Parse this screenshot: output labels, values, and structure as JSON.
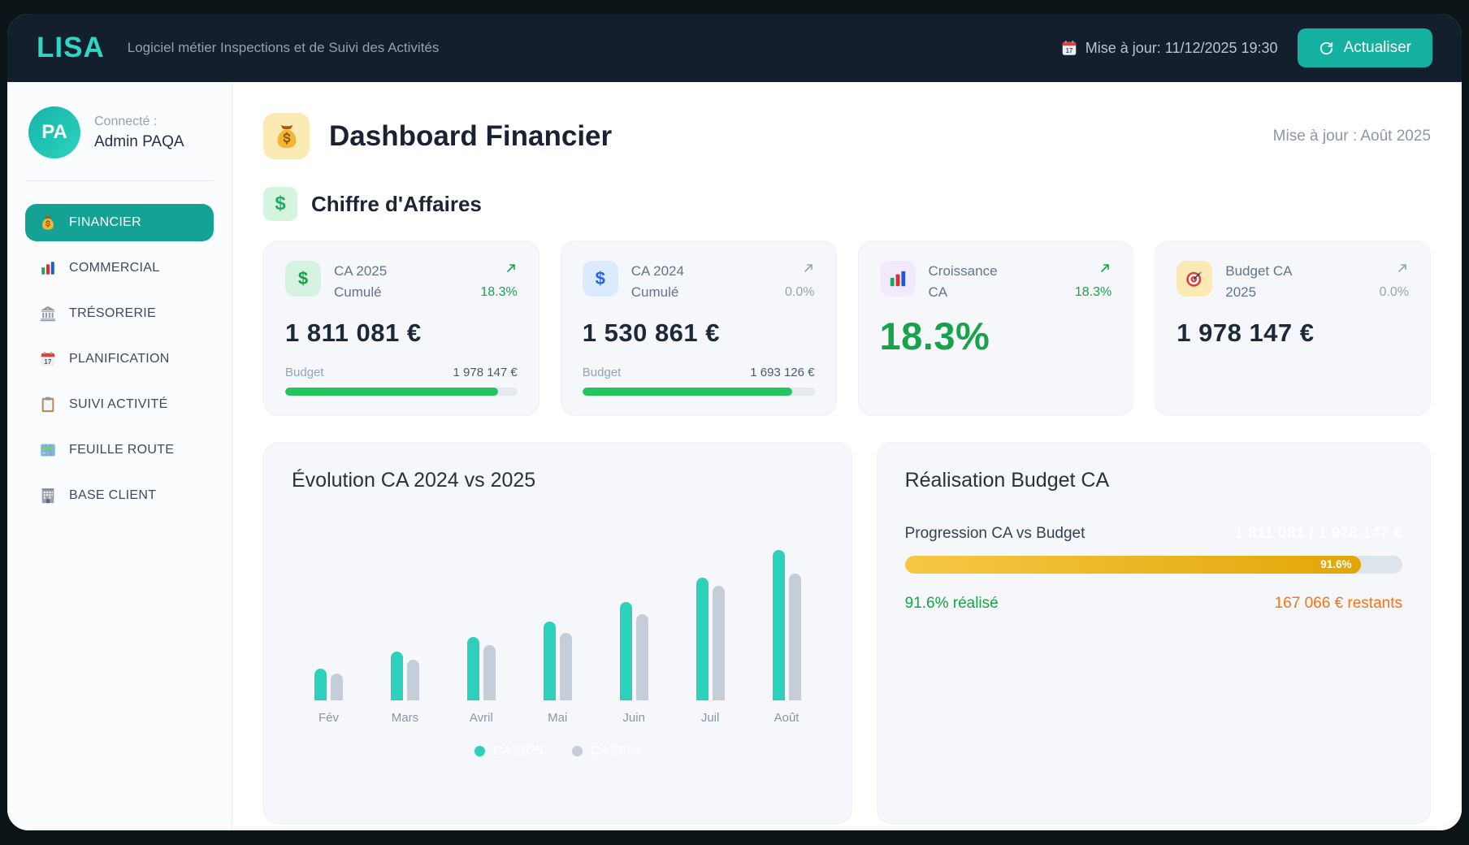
{
  "header": {
    "logo": "LISA",
    "tagline": "Logiciel métier Inspections et de Suivi des Activités",
    "updated_label": "Mise à jour: 11/12/2025 19:30",
    "refresh_label": "Actualiser"
  },
  "sidebar": {
    "avatar_initials": "PA",
    "connected_label": "Connecté :",
    "user_name": "Admin PAQA",
    "items": [
      {
        "id": "financier",
        "label": "FINANCIER",
        "icon": "money-bag-icon",
        "active": true
      },
      {
        "id": "commercial",
        "label": "COMMERCIAL",
        "icon": "bar-chart-icon",
        "active": false
      },
      {
        "id": "tresorerie",
        "label": "TRÉSORERIE",
        "icon": "bank-icon",
        "active": false
      },
      {
        "id": "planification",
        "label": "PLANIFICATION",
        "icon": "calendar-icon",
        "active": false
      },
      {
        "id": "suivi-activite",
        "label": "SUIVI ACTIVITÉ",
        "icon": "clipboard-icon",
        "active": false
      },
      {
        "id": "feuille-route",
        "label": "FEUILLE ROUTE",
        "icon": "map-icon",
        "active": false
      },
      {
        "id": "base-client",
        "label": "BASE CLIENT",
        "icon": "building-icon",
        "active": false
      }
    ]
  },
  "main": {
    "title": "Dashboard Financier",
    "updated": "Mise à jour : Août 2025",
    "section_title": "Chiffre d'Affaires",
    "kpis": [
      {
        "label_line1": "CA 2025",
        "label_line2": "Cumulé",
        "trend": "18.3%",
        "value": "1 811 081 €",
        "budget_label": "Budget",
        "budget_value": "1 978 147 €",
        "progress_pct": 91.6,
        "icon": "dollar-green"
      },
      {
        "label_line1": "CA 2024",
        "label_line2": "Cumulé",
        "trend": "0.0%",
        "value": "1 530 861 €",
        "budget_label": "Budget",
        "budget_value": "1 693 126 €",
        "progress_pct": 90.4,
        "icon": "dollar-blue"
      },
      {
        "label_line1": "Croissance",
        "label_line2": "CA",
        "trend": "18.3%",
        "value": "18.3%",
        "icon": "bar-chart-icon"
      },
      {
        "label_line1": "Budget CA",
        "label_line2": "2025",
        "trend": "0.0%",
        "value": "1 978 147 €",
        "icon": "target-icon"
      }
    ]
  },
  "chart_data": {
    "type": "bar",
    "title": "Évolution CA 2024 vs 2025",
    "categories": [
      "Fév",
      "Mars",
      "Avril",
      "Mai",
      "Juin",
      "Juil",
      "Août"
    ],
    "series": [
      {
        "name": "CA 2025",
        "color": "#2dd0ba",
        "values": [
          385000,
          585000,
          765000,
          950000,
          1185000,
          1480000,
          1811081
        ]
      },
      {
        "name": "CA 2024",
        "color": "#c5cdd9",
        "values": [
          320000,
          485000,
          665000,
          815000,
          1035000,
          1385000,
          1530861
        ]
      }
    ],
    "xlabel": "",
    "ylabel": "",
    "ylim": [
      0,
      1900000
    ],
    "grid": false,
    "y_axis_visible": false,
    "legend_position": "bottom-center",
    "legend_text_color": "#ffffff"
  },
  "budget_panel": {
    "title": "Réalisation Budget CA",
    "progress_label": "Progression CA vs Budget",
    "progress_value": "1 811 081 / 1 978 147 €",
    "pct": 91.6,
    "pct_label": "91.6%",
    "realized": "91.6% réalisé",
    "remaining": "167 066 € restants"
  },
  "colors": {
    "accent_teal": "#14b1a1",
    "header_bg": "#141f2d",
    "bar_2025": "#2dd0ba",
    "bar_2024": "#c5cdd9",
    "progress_green": "#22c55e",
    "progress_amber": "#e2a608",
    "positive_green": "#16a34a",
    "warning_orange": "#f97316",
    "legend_white": "#ffffff"
  }
}
